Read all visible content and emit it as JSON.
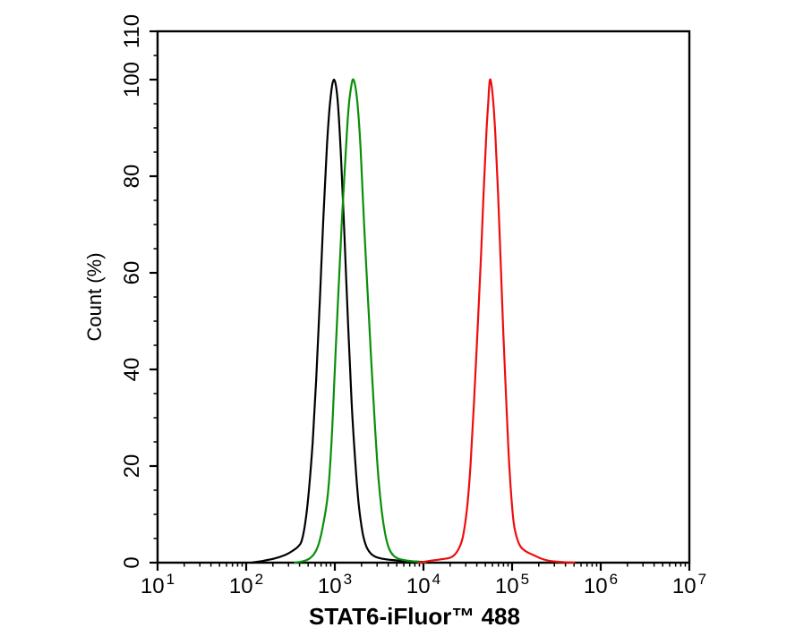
{
  "chart_data": {
    "type": "line",
    "subtype": "flow-cytometry-histogram-overlay",
    "title": "",
    "xlabel": "STAT6-iFluor™ 488",
    "ylabel": "Count  (%)",
    "grid": false,
    "legend": "none",
    "x_axis": {
      "scale": "log10",
      "min_exp": 1,
      "max_exp": 7,
      "tick_base": "10",
      "major_tick_exponents": [
        1,
        2,
        3,
        4,
        5,
        6,
        7
      ],
      "minor_ticks": "log-decade 2-9"
    },
    "y_axis": {
      "min": 0,
      "max": 110,
      "major_ticks": [
        0,
        20,
        40,
        60,
        80,
        100,
        110
      ],
      "minor_tick_step": 5
    },
    "series": [
      {
        "name": "black-curve",
        "color": "#000000",
        "peak_log10_x": 2.99,
        "peak_value": 977,
        "peak_y": 100,
        "points": [
          [
            2.06,
            0
          ],
          [
            2.2,
            0.4
          ],
          [
            2.33,
            0.9
          ],
          [
            2.44,
            1.6
          ],
          [
            2.52,
            2.4
          ],
          [
            2.59,
            3.4
          ],
          [
            2.63,
            4.8
          ],
          [
            2.67,
            8.7
          ],
          [
            2.71,
            15.5
          ],
          [
            2.75,
            25
          ],
          [
            2.79,
            38
          ],
          [
            2.83,
            54
          ],
          [
            2.87,
            71
          ],
          [
            2.91,
            86
          ],
          [
            2.95,
            96
          ],
          [
            2.99,
            100
          ],
          [
            3.03,
            96
          ],
          [
            3.07,
            84
          ],
          [
            3.11,
            67
          ],
          [
            3.15,
            49
          ],
          [
            3.19,
            33
          ],
          [
            3.23,
            21
          ],
          [
            3.27,
            12
          ],
          [
            3.31,
            6.5
          ],
          [
            3.35,
            3.6
          ],
          [
            3.4,
            2.0
          ],
          [
            3.46,
            1.2
          ],
          [
            3.54,
            0.8
          ],
          [
            3.64,
            0.55
          ],
          [
            3.78,
            0.35
          ],
          [
            3.93,
            0.2
          ],
          [
            4.07,
            0
          ]
        ]
      },
      {
        "name": "green-curve",
        "color": "#0a8f0a",
        "peak_log10_x": 3.21,
        "peak_value": 1622,
        "peak_y": 100,
        "points": [
          [
            2.55,
            0
          ],
          [
            2.64,
            0.3
          ],
          [
            2.71,
            0.8
          ],
          [
            2.77,
            1.9
          ],
          [
            2.82,
            4
          ],
          [
            2.87,
            8
          ],
          [
            2.92,
            14
          ],
          [
            2.96,
            24
          ],
          [
            3.0,
            40
          ],
          [
            3.04,
            56
          ],
          [
            3.08,
            71
          ],
          [
            3.12,
            84
          ],
          [
            3.15,
            93
          ],
          [
            3.18,
            98
          ],
          [
            3.21,
            100
          ],
          [
            3.25,
            96
          ],
          [
            3.29,
            86
          ],
          [
            3.33,
            70
          ],
          [
            3.37,
            56
          ],
          [
            3.41,
            42
          ],
          [
            3.45,
            29
          ],
          [
            3.49,
            18
          ],
          [
            3.53,
            10.5
          ],
          [
            3.57,
            5.8
          ],
          [
            3.61,
            3.0
          ],
          [
            3.66,
            1.5
          ],
          [
            3.72,
            0.8
          ],
          [
            3.81,
            0.45
          ],
          [
            3.92,
            0.2
          ],
          [
            4.02,
            0
          ]
        ]
      },
      {
        "name": "red-curve",
        "color": "#ee0d0d",
        "peak_log10_x": 4.75,
        "peak_value": 56234,
        "peak_y": 100,
        "points": [
          [
            3.95,
            0
          ],
          [
            4.08,
            0.4
          ],
          [
            4.2,
            0.7
          ],
          [
            4.31,
            1.1
          ],
          [
            4.38,
            2.3
          ],
          [
            4.44,
            5
          ],
          [
            4.49,
            11
          ],
          [
            4.53,
            20
          ],
          [
            4.57,
            33
          ],
          [
            4.61,
            48
          ],
          [
            4.65,
            64
          ],
          [
            4.68,
            77
          ],
          [
            4.71,
            89
          ],
          [
            4.73,
            95
          ],
          [
            4.75,
            100
          ],
          [
            4.78,
            97
          ],
          [
            4.81,
            89
          ],
          [
            4.84,
            77
          ],
          [
            4.87,
            63
          ],
          [
            4.9,
            48
          ],
          [
            4.93,
            35
          ],
          [
            4.96,
            23
          ],
          [
            4.99,
            14
          ],
          [
            5.02,
            8
          ],
          [
            5.06,
            4.8
          ],
          [
            5.1,
            3.2
          ],
          [
            5.15,
            2.4
          ],
          [
            5.2,
            1.9
          ],
          [
            5.26,
            1.4
          ],
          [
            5.32,
            0.9
          ],
          [
            5.4,
            0.45
          ],
          [
            5.5,
            0.2
          ],
          [
            5.62,
            0.08
          ],
          [
            5.7,
            0
          ]
        ]
      }
    ]
  }
}
